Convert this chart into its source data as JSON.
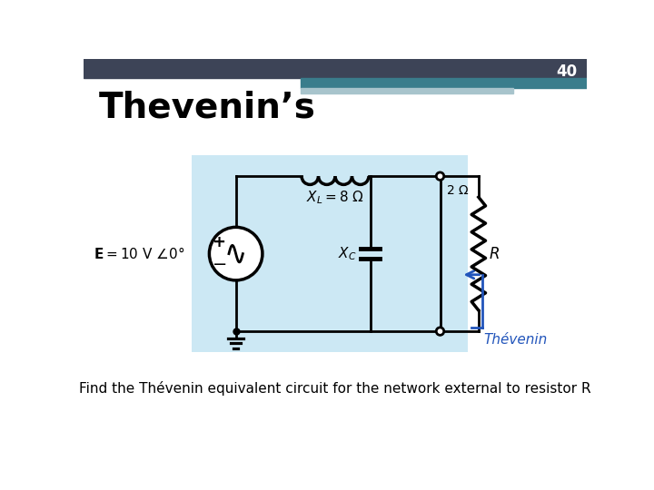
{
  "slide_number": "40",
  "title": "Thevenin’s",
  "subtitle": "Find the Thévenin equivalent circuit for the network external to resistor R",
  "bg_color": "#ffffff",
  "header_dark": "#3d4457",
  "header_teal": "#3a7d8c",
  "header_light": "#a8c4cc",
  "circuit_bg": "#cce8f4",
  "thevenin_label": "Thévenin",
  "thevenin_color": "#2255bb"
}
